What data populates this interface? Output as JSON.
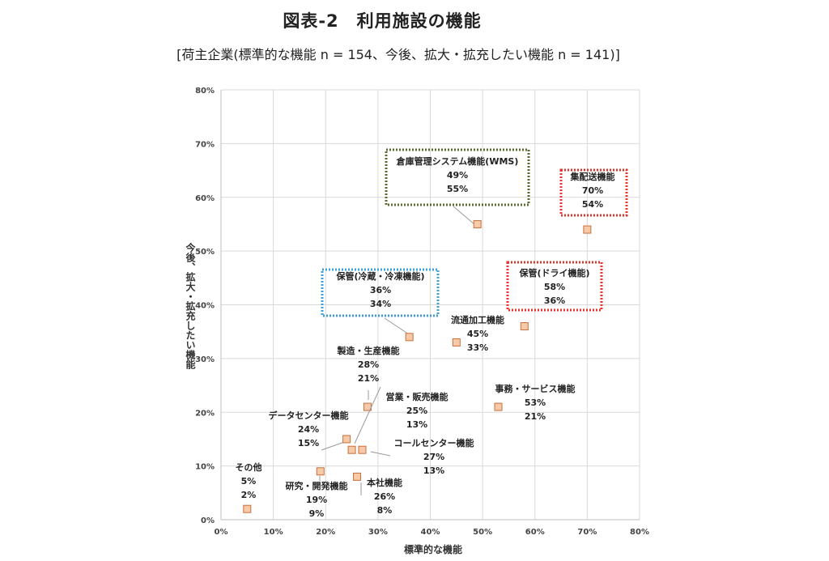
{
  "title": "図表-2　利用施設の機能",
  "subtitle": "[荷主企業(標準的な機能 n = 154、今後、拡大・拡充したい機能 n = 141)]",
  "chart_data": {
    "type": "scatter",
    "xlabel": "標準的な機能",
    "ylabel": "今後、拡大・拡充したい機能",
    "xlim": [
      0,
      80
    ],
    "ylim": [
      0,
      80
    ],
    "x_ticks": [
      "0%",
      "10%",
      "20%",
      "30%",
      "40%",
      "50%",
      "60%",
      "70%",
      "80%"
    ],
    "y_ticks": [
      "0%",
      "10%",
      "20%",
      "30%",
      "40%",
      "50%",
      "60%",
      "70%",
      "80%"
    ],
    "grid": true,
    "marker_color": "#f6c9a8",
    "marker_edge": "#c8703a",
    "points": [
      {
        "name": "倉庫管理システム機能(WMS)",
        "x": 49,
        "y": 55,
        "x_label": "49%",
        "y_label": "55%",
        "highlight": "#5a6b2e",
        "box_style": "dotted"
      },
      {
        "name": "集配送機能",
        "x": 70,
        "y": 54,
        "x_label": "70%",
        "y_label": "54%",
        "highlight": "#e8312a",
        "box_style": "dotted"
      },
      {
        "name": "保管(冷蔵・冷凍機能)",
        "x": 36,
        "y": 34,
        "x_label": "36%",
        "y_label": "34%",
        "highlight": "#3da0d8",
        "box_style": "dotted"
      },
      {
        "name": "保管(ドライ機能)",
        "x": 58,
        "y": 36,
        "x_label": "58%",
        "y_label": "36%",
        "highlight": "#e8312a",
        "box_style": "dotted"
      },
      {
        "name": "流通加工機能",
        "x": 45,
        "y": 33,
        "x_label": "45%",
        "y_label": "33%"
      },
      {
        "name": "製造・生産機能",
        "x": 28,
        "y": 21,
        "x_label": "28%",
        "y_label": "21%"
      },
      {
        "name": "営業・販売機能",
        "x": 25,
        "y": 13,
        "x_label": "25%",
        "y_label": "13%"
      },
      {
        "name": "事務・サービス機能",
        "x": 53,
        "y": 21,
        "x_label": "53%",
        "y_label": "21%"
      },
      {
        "name": "データセンター機能",
        "x": 24,
        "y": 15,
        "x_label": "24%",
        "y_label": "15%"
      },
      {
        "name": "コールセンター機能",
        "x": 27,
        "y": 13,
        "x_label": "27%",
        "y_label": "13%"
      },
      {
        "name": "本社機能",
        "x": 26,
        "y": 8,
        "x_label": "26%",
        "y_label": "8%"
      },
      {
        "name": "研究・開発機能",
        "x": 19,
        "y": 9,
        "x_label": "19%",
        "y_label": "9%"
      },
      {
        "name": "その他",
        "x": 5,
        "y": 2,
        "x_label": "5%",
        "y_label": "2%"
      }
    ]
  }
}
